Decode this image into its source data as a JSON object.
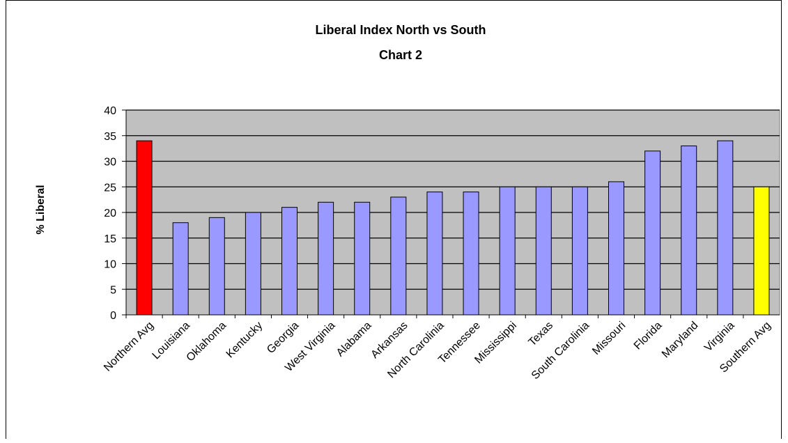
{
  "chart_data": {
    "type": "bar",
    "title": "Liberal Index North vs South",
    "subtitle": "Chart 2",
    "xlabel": "",
    "ylabel": "% Liberal",
    "ylim": [
      0,
      40
    ],
    "yticks": [
      0,
      5,
      10,
      15,
      20,
      25,
      30,
      35,
      40
    ],
    "grid": true,
    "plot_background": "#c0c0c0",
    "categories": [
      "Northern Avg",
      "Louisiana",
      "Oklahoma",
      "Kentucky",
      "Georgia",
      "West Virginia",
      "Alabama",
      "Arkansas",
      "North Carolinia",
      "Tennessee",
      "Mississippi",
      "Texas",
      "South Carolinia",
      "Missouri",
      "Florida",
      "Maryland",
      "Virginia",
      "Southern Avg"
    ],
    "values": [
      34,
      18,
      19,
      20,
      21,
      22,
      22,
      23,
      24,
      24,
      25,
      25,
      25,
      26,
      32,
      33,
      34,
      25
    ],
    "colors": [
      "#ff0000",
      "#9999ff",
      "#9999ff",
      "#9999ff",
      "#9999ff",
      "#9999ff",
      "#9999ff",
      "#9999ff",
      "#9999ff",
      "#9999ff",
      "#9999ff",
      "#9999ff",
      "#9999ff",
      "#9999ff",
      "#9999ff",
      "#9999ff",
      "#9999ff",
      "#ffff00"
    ]
  }
}
